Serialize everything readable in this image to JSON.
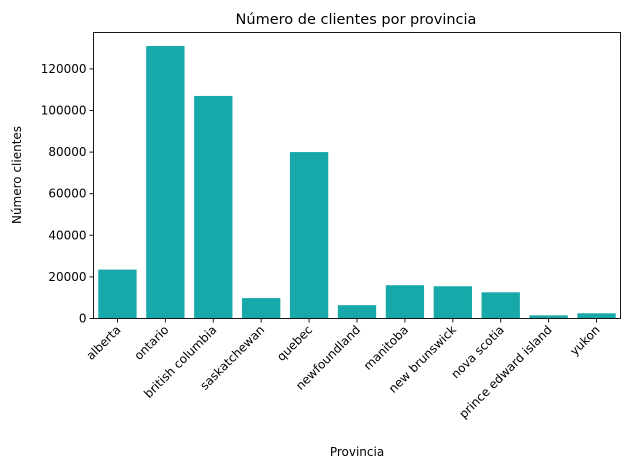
{
  "chart_data": {
    "type": "bar",
    "title": "Número de clientes por provincia",
    "xlabel": "Provincia",
    "ylabel": "Número clientes",
    "categories": [
      "alberta",
      "ontario",
      "british columbia",
      "saskatchewan",
      "quebec",
      "newfoundland",
      "manitoba",
      "new brunswick",
      "nova scotia",
      "prince edward island",
      "yukon"
    ],
    "values": [
      23500,
      131000,
      107000,
      9800,
      80000,
      6400,
      16000,
      15500,
      12600,
      1500,
      2500
    ],
    "ylim": [
      0,
      137500
    ],
    "yticks": [
      0,
      20000,
      40000,
      60000,
      80000,
      100000,
      120000
    ],
    "bar_color": "#17a9a9",
    "grid": false,
    "legend": "none"
  }
}
